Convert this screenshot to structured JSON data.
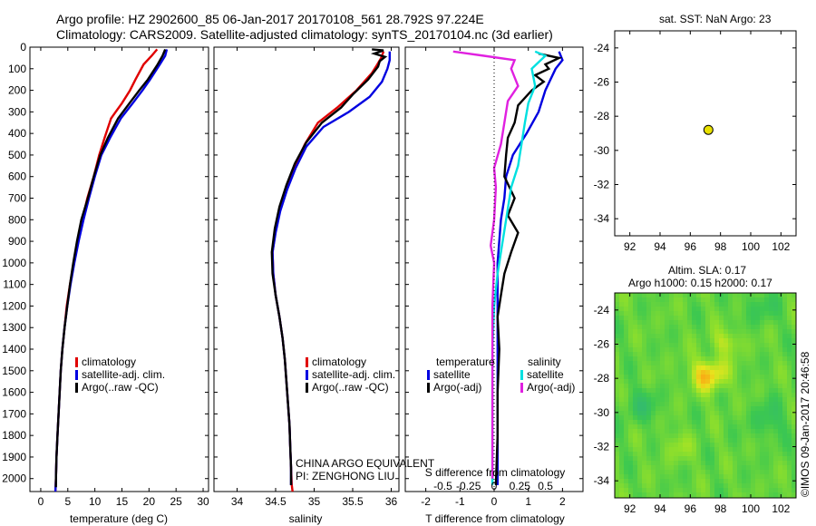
{
  "header": {
    "line1": "Argo profile: HZ 2902600_85 06-Jan-2017 20170108_561 28.792S 97.224E",
    "line2": "Climatology: CARS2009. Satellite-adjusted climatology: synTS_20170104.nc (3d earlier)"
  },
  "colors": {
    "red": "#e00000",
    "blue": "#0000e0",
    "black": "#000000",
    "cyan": "#00e0e0",
    "magenta": "#e020e0",
    "float": "#e8e000"
  },
  "chart_data": [
    {
      "id": "temperature",
      "type": "line",
      "xlabel": "temperature (deg C)",
      "ylabel": "",
      "xlim": [
        -2,
        31
      ],
      "ylim": [
        2060,
        0
      ],
      "x_ticks": [
        0,
        5,
        10,
        15,
        20,
        25,
        30
      ],
      "y_ticks": [
        0,
        100,
        200,
        300,
        400,
        500,
        600,
        700,
        800,
        900,
        1000,
        1100,
        1200,
        1300,
        1400,
        1500,
        1600,
        1700,
        1800,
        1900,
        2000
      ],
      "legend": [
        "climatology",
        "satellite-adj. clim.",
        "Argo(..raw -QC)"
      ],
      "series": [
        {
          "name": "climatology",
          "color": "red",
          "points": [
            [
              21.5,
              10
            ],
            [
              20.5,
              40
            ],
            [
              19,
              80
            ],
            [
              17.5,
              150
            ],
            [
              16.5,
              200
            ],
            [
              15,
              260
            ],
            [
              13,
              330
            ],
            [
              11.8,
              420
            ],
            [
              10.8,
              500
            ],
            [
              9.8,
              600
            ],
            [
              8.6,
              700
            ],
            [
              7.7,
              800
            ],
            [
              6.9,
              900
            ],
            [
              6.1,
              1000
            ],
            [
              5.4,
              1100
            ],
            [
              4.8,
              1200
            ],
            [
              4.4,
              1300
            ],
            [
              4,
              1400
            ],
            [
              3.7,
              1500
            ],
            [
              3.5,
              1600
            ],
            [
              3.3,
              1700
            ],
            [
              3.1,
              1800
            ],
            [
              2.9,
              1900
            ],
            [
              2.8,
              2000
            ],
            [
              2.7,
              2060
            ]
          ]
        },
        {
          "name": "satellite-adj. clim.",
          "color": "blue",
          "points": [
            [
              23.3,
              10
            ],
            [
              23,
              40
            ],
            [
              22,
              80
            ],
            [
              20.2,
              150
            ],
            [
              18.8,
              200
            ],
            [
              17,
              260
            ],
            [
              14.8,
              330
            ],
            [
              12.8,
              420
            ],
            [
              11.2,
              500
            ],
            [
              10,
              600
            ],
            [
              8.9,
              700
            ],
            [
              7.9,
              800
            ],
            [
              7,
              900
            ],
            [
              6.2,
              1000
            ],
            [
              5.5,
              1100
            ],
            [
              4.9,
              1200
            ],
            [
              4.4,
              1300
            ],
            [
              4,
              1400
            ],
            [
              3.7,
              1500
            ],
            [
              3.5,
              1600
            ],
            [
              3.3,
              1700
            ],
            [
              3.1,
              1800
            ],
            [
              2.9,
              1900
            ],
            [
              2.8,
              2000
            ],
            [
              2.7,
              2060
            ]
          ]
        },
        {
          "name": "Argo(..raw -QC)",
          "color": "black",
          "points": [
            [
              23,
              10
            ],
            [
              22.5,
              40
            ],
            [
              21.6,
              80
            ],
            [
              19.8,
              150
            ],
            [
              18.2,
              200
            ],
            [
              16.4,
              260
            ],
            [
              14.3,
              330
            ],
            [
              12.4,
              420
            ],
            [
              11,
              500
            ],
            [
              9.8,
              600
            ],
            [
              8.7,
              700
            ],
            [
              7.5,
              800
            ],
            [
              6.7,
              900
            ],
            [
              6,
              1000
            ],
            [
              5.4,
              1100
            ],
            [
              4.9,
              1200
            ],
            [
              4.4,
              1300
            ],
            [
              4,
              1400
            ],
            [
              3.7,
              1500
            ],
            [
              3.5,
              1600
            ],
            [
              3.3,
              1700
            ],
            [
              3.1,
              1800
            ],
            [
              2.9,
              1900
            ],
            [
              2.8,
              2000
            ],
            [
              2.8,
              2040
            ]
          ]
        }
      ]
    },
    {
      "id": "salinity",
      "type": "line",
      "xlabel": "salinity",
      "ylabel": "",
      "xlim": [
        33.7,
        36.1
      ],
      "ylim": [
        2060,
        0
      ],
      "x_ticks": [
        34,
        34.5,
        35,
        35.5,
        36
      ],
      "legend": [
        "climatology",
        "satellite-adj. clim.",
        "Argo(..raw -QC)"
      ],
      "series": [
        {
          "name": "climatology",
          "color": "red",
          "points": [
            [
              35.9,
              20
            ],
            [
              35.87,
              50
            ],
            [
              35.82,
              80
            ],
            [
              35.75,
              120
            ],
            [
              35.55,
              200
            ],
            [
              35.3,
              280
            ],
            [
              35.05,
              350
            ],
            [
              34.88,
              450
            ],
            [
              34.75,
              550
            ],
            [
              34.64,
              650
            ],
            [
              34.56,
              750
            ],
            [
              34.5,
              850
            ],
            [
              34.46,
              950
            ],
            [
              34.47,
              1050
            ],
            [
              34.5,
              1150
            ],
            [
              34.55,
              1250
            ],
            [
              34.59,
              1350
            ],
            [
              34.62,
              1450
            ],
            [
              34.64,
              1550
            ],
            [
              34.66,
              1650
            ],
            [
              34.68,
              1750
            ],
            [
              34.69,
              1850
            ],
            [
              34.7,
              1950
            ],
            [
              34.71,
              2030
            ],
            [
              34.72,
              2060
            ]
          ]
        },
        {
          "name": "satellite-adj. clim.",
          "color": "blue",
          "points": [
            [
              35.98,
              20
            ],
            [
              35.98,
              60
            ],
            [
              35.95,
              100
            ],
            [
              35.88,
              160
            ],
            [
              35.72,
              230
            ],
            [
              35.45,
              300
            ],
            [
              35.12,
              370
            ],
            [
              34.9,
              460
            ],
            [
              34.76,
              560
            ],
            [
              34.65,
              660
            ],
            [
              34.56,
              760
            ],
            [
              34.5,
              860
            ],
            [
              34.46,
              950
            ],
            [
              34.47,
              1050
            ],
            [
              34.5,
              1150
            ],
            [
              34.55,
              1250
            ],
            [
              34.59,
              1350
            ],
            [
              34.62,
              1450
            ],
            [
              34.64,
              1550
            ],
            [
              34.66,
              1650
            ],
            [
              34.68,
              1750
            ],
            [
              34.69,
              1850
            ],
            [
              34.7,
              1950
            ],
            [
              34.7,
              2030
            ]
          ]
        },
        {
          "name": "Argo(..raw -QC)",
          "color": "black",
          "points": [
            [
              35.75,
              10
            ],
            [
              35.9,
              15
            ],
            [
              35.78,
              30
            ],
            [
              35.92,
              45
            ],
            [
              35.85,
              65
            ],
            [
              35.83,
              90
            ],
            [
              35.7,
              150
            ],
            [
              35.5,
              220
            ],
            [
              35.35,
              280
            ],
            [
              35.1,
              350
            ],
            [
              34.9,
              440
            ],
            [
              34.75,
              540
            ],
            [
              34.64,
              640
            ],
            [
              34.55,
              740
            ],
            [
              34.49,
              840
            ],
            [
              34.45,
              950
            ],
            [
              34.46,
              1050
            ],
            [
              34.5,
              1150
            ],
            [
              34.55,
              1250
            ],
            [
              34.59,
              1350
            ],
            [
              34.62,
              1450
            ],
            [
              34.64,
              1550
            ],
            [
              34.66,
              1650
            ],
            [
              34.68,
              1750
            ],
            [
              34.69,
              1850
            ],
            [
              34.7,
              1950
            ],
            [
              34.7,
              2030
            ]
          ]
        }
      ],
      "annotation": [
        "CHINA ARGO EQUIVALENT",
        "PI: ZENGHONG LIU"
      ]
    },
    {
      "id": "difference",
      "type": "line",
      "xlabel": "T difference from climatology",
      "xlabel_top": "S difference from climatology",
      "xlim": [
        -2.6,
        2.6
      ],
      "ylim": [
        2060,
        0
      ],
      "x_ticks_T": [
        -2,
        -1,
        0,
        1,
        2
      ],
      "x_ticks_S": [
        "-0.5",
        "-0.25",
        "0",
        "0.25",
        "0.5"
      ],
      "x_ticks_S_values": [
        -1.5,
        -0.75,
        0,
        0.75,
        1.5
      ],
      "legend_titles": [
        "temperature",
        "salinity"
      ],
      "legend_temperature": [
        "satellite",
        "Argo(-adj)"
      ],
      "legend_salinity": [
        "satellite",
        "Argo(-adj)"
      ],
      "series": [
        {
          "name": "temperature satellite",
          "color": "blue",
          "points": [
            [
              1.9,
              20
            ],
            [
              2,
              60
            ],
            [
              1.8,
              100
            ],
            [
              1.5,
              200
            ],
            [
              1.3,
              300
            ],
            [
              0.95,
              400
            ],
            [
              0.55,
              500
            ],
            [
              0.35,
              600
            ],
            [
              0.3,
              700
            ],
            [
              0.2,
              800
            ],
            [
              0.1,
              1000
            ],
            [
              0.1,
              1200
            ],
            [
              0.1,
              1500
            ],
            [
              0.1,
              1800
            ],
            [
              0.1,
              2030
            ]
          ]
        },
        {
          "name": "temperature Argo(-adj)",
          "color": "black",
          "points": [
            [
              1.3,
              30
            ],
            [
              1.9,
              50
            ],
            [
              1.5,
              80
            ],
            [
              1.6,
              100
            ],
            [
              1.2,
              130
            ],
            [
              1.45,
              160
            ],
            [
              1.1,
              200
            ],
            [
              0.7,
              270
            ],
            [
              0.6,
              350
            ],
            [
              0.4,
              420
            ],
            [
              0.35,
              500
            ],
            [
              0.3,
              600
            ],
            [
              0.6,
              700
            ],
            [
              0.4,
              780
            ],
            [
              0.7,
              860
            ],
            [
              0.5,
              950
            ],
            [
              0.3,
              1050
            ],
            [
              0.2,
              1150
            ],
            [
              0.1,
              1250
            ],
            [
              0.15,
              1400
            ],
            [
              0.1,
              1600
            ],
            [
              0.1,
              1800
            ],
            [
              0.05,
              2030
            ]
          ]
        },
        {
          "name": "salinity satellite",
          "color": "cyan",
          "points": [
            [
              1.2,
              20
            ],
            [
              1.5,
              40
            ],
            [
              1.1,
              100
            ],
            [
              1.2,
              180
            ],
            [
              1.0,
              260
            ],
            [
              0.9,
              350
            ],
            [
              0.8,
              450
            ],
            [
              0.7,
              550
            ],
            [
              0.5,
              650
            ],
            [
              0.35,
              800
            ],
            [
              0.2,
              950
            ],
            [
              0.1,
              1050
            ],
            [
              0,
              1200
            ],
            [
              -0.05,
              1400
            ],
            [
              -0.05,
              1600
            ],
            [
              -0.05,
              1800
            ],
            [
              -0.05,
              2030
            ]
          ]
        },
        {
          "name": "salinity Argo(-adj)",
          "color": "magenta",
          "points": [
            [
              -1.2,
              20
            ],
            [
              -0.3,
              40
            ],
            [
              0.6,
              60
            ],
            [
              0.5,
              100
            ],
            [
              0.7,
              180
            ],
            [
              0.4,
              250
            ],
            [
              0.3,
              350
            ],
            [
              0.2,
              450
            ],
            [
              0,
              560
            ],
            [
              0.05,
              650
            ],
            [
              0,
              800
            ],
            [
              -0.1,
              920
            ],
            [
              0,
              1000
            ],
            [
              -0.05,
              1200
            ],
            [
              -0.05,
              1500
            ],
            [
              -0.05,
              1800
            ],
            [
              -0.05,
              2000
            ]
          ]
        }
      ]
    },
    {
      "id": "map_sst",
      "type": "scatter",
      "title": "sat. SST: NaN Argo: 23",
      "xlim": [
        91,
        103
      ],
      "ylim": [
        -35,
        -23
      ],
      "x_ticks": [
        92,
        94,
        96,
        98,
        100,
        102
      ],
      "y_ticks": [
        -24,
        -26,
        -28,
        -30,
        -32,
        -34
      ],
      "points": [
        {
          "x": 97.2,
          "y": -28.8
        }
      ]
    },
    {
      "id": "map_sla",
      "type": "heatmap",
      "title_line1": "Altim. SLA: 0.17",
      "title_line2": "Argo h1000: 0.15 h2000: 0.17",
      "xlim": [
        91,
        103
      ],
      "ylim": [
        -35,
        -23
      ],
      "x_ticks": [
        92,
        94,
        96,
        98,
        100,
        102
      ],
      "y_ticks": [
        -24,
        -26,
        -28,
        -30,
        -32,
        -34
      ]
    }
  ],
  "credit": "©IMOS 09-Jan-2017 20:46:58"
}
